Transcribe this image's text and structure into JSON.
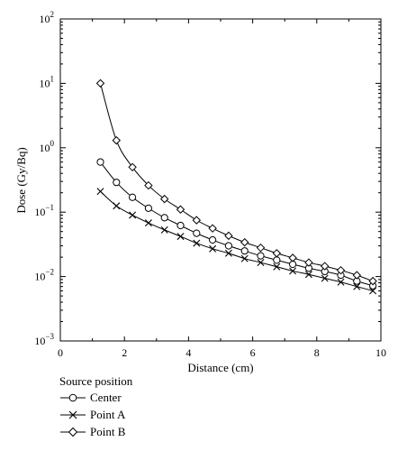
{
  "chart_data": {
    "type": "line",
    "xlabel": "Distance (cm)",
    "ylabel": "Dose (Gy/Bq)",
    "xlim": [
      0,
      10
    ],
    "ylim": [
      0.001,
      100
    ],
    "yscale": "log",
    "grid": false,
    "x_ticks": [
      "0",
      "2",
      "4",
      "6",
      "8",
      "10"
    ],
    "y_ticks": [
      {
        "base": "10",
        "exp": "−3"
      },
      {
        "base": "10",
        "exp": "−2"
      },
      {
        "base": "10",
        "exp": "−1"
      },
      {
        "base": "10",
        "exp": "0"
      },
      {
        "base": "10",
        "exp": "1"
      },
      {
        "base": "10",
        "exp": "2"
      }
    ],
    "legend_title": "Source position",
    "legend_position": "below",
    "series": [
      {
        "name": "Center",
        "marker": "circle",
        "x": [
          1.25,
          1.75,
          2.25,
          2.75,
          3.25,
          3.75,
          4.25,
          4.75,
          5.25,
          5.75,
          6.25,
          6.75,
          7.25,
          7.75,
          8.25,
          8.75,
          9.25,
          9.75
        ],
        "y": [
          0.6,
          0.29,
          0.17,
          0.115,
          0.082,
          0.062,
          0.047,
          0.037,
          0.03,
          0.025,
          0.021,
          0.018,
          0.0155,
          0.0135,
          0.012,
          0.0105,
          0.0085,
          0.0072
        ]
      },
      {
        "name": "Point A",
        "marker": "x",
        "x": [
          1.25,
          1.75,
          2.25,
          2.75,
          3.25,
          3.75,
          4.25,
          4.75,
          5.25,
          5.75,
          6.25,
          6.75,
          7.25,
          7.75,
          8.25,
          8.75,
          9.25,
          9.75
        ],
        "y": [
          0.21,
          0.125,
          0.09,
          0.068,
          0.053,
          0.042,
          0.033,
          0.027,
          0.023,
          0.019,
          0.0165,
          0.0142,
          0.0122,
          0.0108,
          0.0094,
          0.0082,
          0.007,
          0.006
        ]
      },
      {
        "name": "Point B",
        "marker": "diamond",
        "x": [
          1.25,
          1.75,
          2.25,
          2.75,
          3.25,
          3.75,
          4.25,
          4.75,
          5.25,
          5.75,
          6.25,
          6.75,
          7.25,
          7.75,
          8.25,
          8.75,
          9.25,
          9.75
        ],
        "y": [
          10,
          1.3,
          0.5,
          0.26,
          0.16,
          0.11,
          0.075,
          0.056,
          0.043,
          0.034,
          0.028,
          0.023,
          0.0195,
          0.0165,
          0.0145,
          0.0125,
          0.0105,
          0.0085
        ]
      }
    ]
  }
}
